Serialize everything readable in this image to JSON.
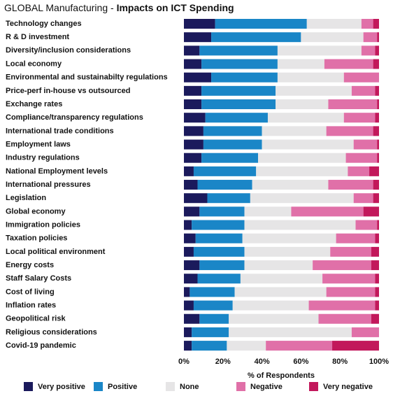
{
  "chart_data": {
    "type": "stacked-bar-horizontal",
    "title": "GLOBAL Manufacturing -",
    "subtitle": "Impacts on ICT Spending",
    "x_label": "% of Respondents",
    "xlim": [
      0,
      100
    ],
    "xticks": [
      {
        "value": 0,
        "label": "0%"
      },
      {
        "value": 20,
        "label": "20%"
      },
      {
        "value": 40,
        "label": "40%"
      },
      {
        "value": 60,
        "label": "60%"
      },
      {
        "value": 80,
        "label": "80%"
      },
      {
        "value": 100,
        "label": "100%"
      }
    ],
    "categories": [
      "Technology changes",
      "R & D investment",
      "Diversity/inclusion considerations",
      "Local economy",
      "Environmental and sustainabilty regulations",
      "Price-perf in-house vs outsourced",
      "Exchange rates",
      "Compliance/transparency regulations",
      "International trade conditions",
      "Employment laws",
      "Industry regulations",
      "National Employment levels",
      "International pressures",
      "Legislation",
      "Global economy",
      "Immigration policies",
      "Taxation policies",
      "Local political environment",
      "Energy costs",
      "Staff Salary Costs",
      "Cost of living",
      "Inflation rates",
      "Geopolitical risk",
      "Religious considerations",
      "Covid-19 pandemic"
    ],
    "series": [
      {
        "name": "Very positive",
        "color": "#1b1a5c",
        "values": [
          16,
          14,
          8,
          9,
          14,
          9,
          9,
          11,
          10,
          10,
          9,
          5,
          7,
          12,
          8,
          4,
          6,
          5,
          8,
          7,
          3,
          5,
          8,
          4,
          4
        ]
      },
      {
        "name": "Positive",
        "color": "#1a86c7",
        "values": [
          47,
          46,
          40,
          39,
          34,
          38,
          38,
          32,
          30,
          30,
          29,
          32,
          28,
          22,
          23,
          27,
          24,
          26,
          23,
          22,
          23,
          20,
          15,
          19,
          18
        ]
      },
      {
        "name": "None",
        "color": "#e6e5e6",
        "values": [
          28,
          32,
          43,
          24,
          34,
          39,
          27,
          39,
          33,
          47,
          45,
          47,
          39,
          53,
          24,
          57,
          48,
          44,
          35,
          42,
          47,
          39,
          46,
          63,
          20
        ]
      },
      {
        "name": "Negative",
        "color": "#e070a8",
        "values": [
          6,
          7,
          7,
          25,
          18,
          12,
          25,
          16,
          24,
          12,
          16,
          11,
          23,
          10,
          37,
          11,
          20,
          21,
          30,
          27,
          25,
          34,
          27,
          14,
          34
        ]
      },
      {
        "name": "Very negative",
        "color": "#c2185b",
        "values": [
          3,
          1,
          2,
          3,
          0,
          2,
          1,
          2,
          3,
          1,
          1,
          5,
          3,
          3,
          8,
          1,
          2,
          4,
          4,
          2,
          2,
          2,
          4,
          0,
          24
        ]
      }
    ]
  }
}
